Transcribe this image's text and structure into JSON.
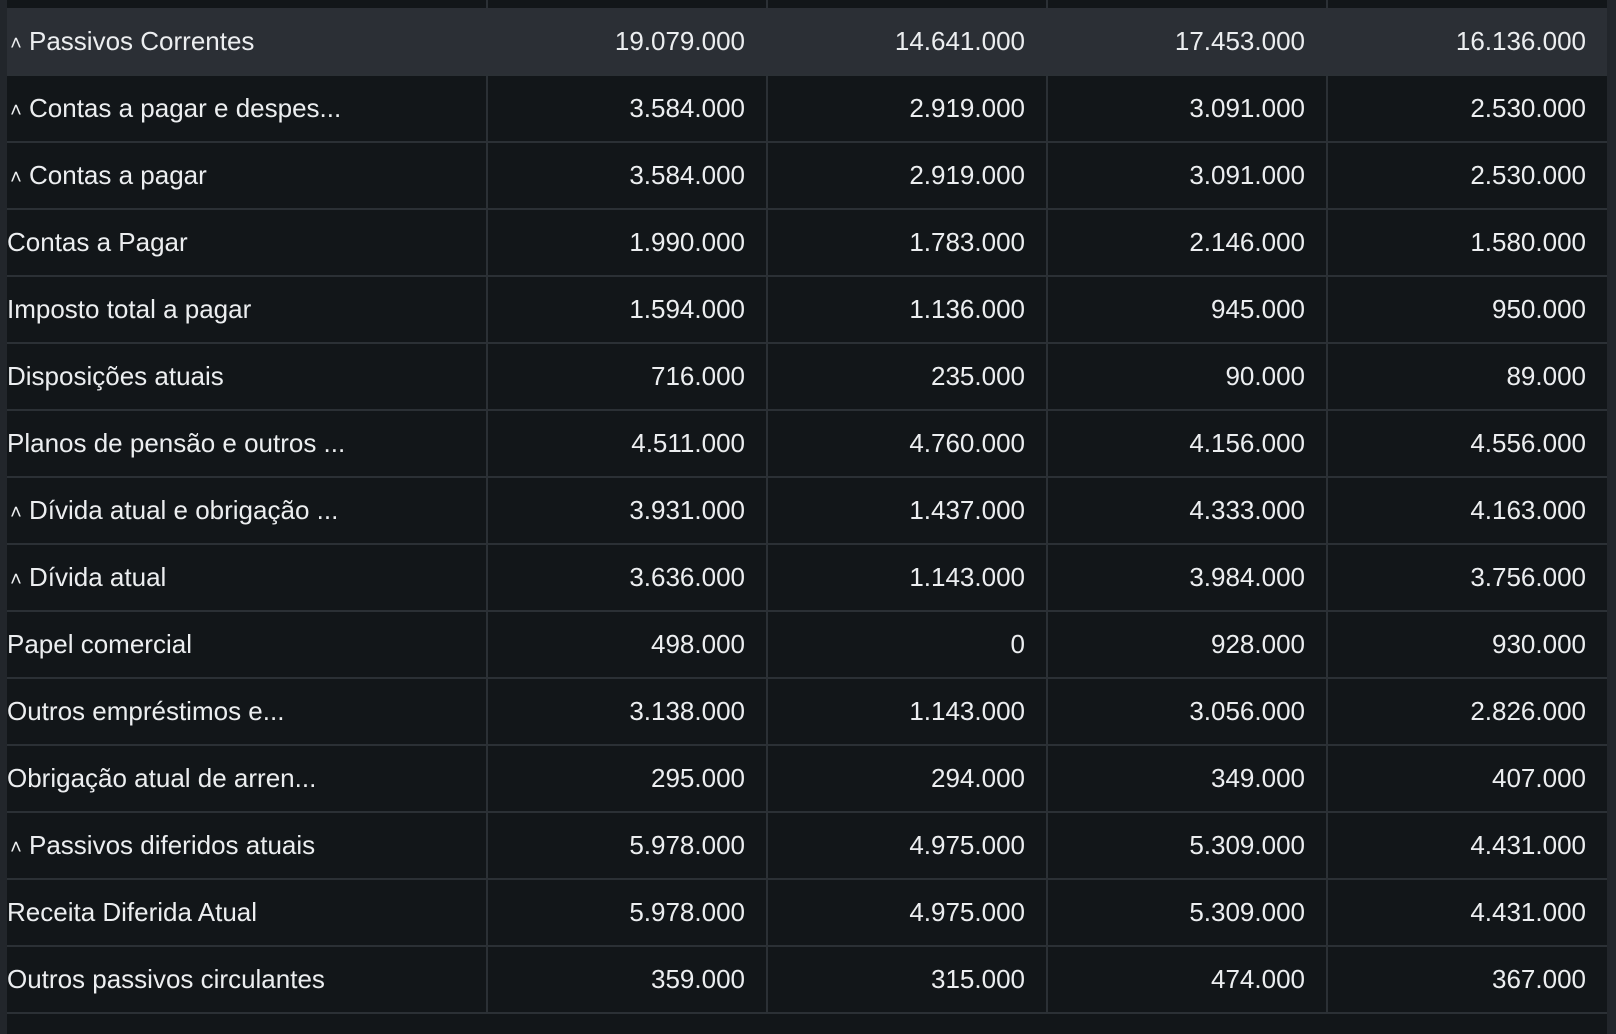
{
  "icons": {
    "collapse": "chevron-up-icon"
  },
  "table": {
    "rows": [
      {
        "label": "Passivos Correntes",
        "expandable": true,
        "level": "0c",
        "values": [
          "19.079.000",
          "14.641.000",
          "17.453.000",
          "16.136.000"
        ]
      },
      {
        "label": "Contas a pagar e despes...",
        "expandable": true,
        "level": "1c",
        "values": [
          "3.584.000",
          "2.919.000",
          "3.091.000",
          "2.530.000"
        ]
      },
      {
        "label": "Contas a pagar",
        "expandable": true,
        "level": "2c",
        "values": [
          "3.584.000",
          "2.919.000",
          "3.091.000",
          "2.530.000"
        ]
      },
      {
        "label": "Contas a Pagar",
        "expandable": false,
        "level": "3",
        "values": [
          "1.990.000",
          "1.783.000",
          "2.146.000",
          "1.580.000"
        ]
      },
      {
        "label": "Imposto total a pagar",
        "expandable": false,
        "level": "3",
        "values": [
          "1.594.000",
          "1.136.000",
          "945.000",
          "950.000"
        ]
      },
      {
        "label": "Disposições atuais",
        "expandable": false,
        "level": "r",
        "values": [
          "716.000",
          "235.000",
          "90.000",
          "89.000"
        ]
      },
      {
        "label": "Planos de pensão e outros ...",
        "expandable": false,
        "level": "r",
        "values": [
          "4.511.000",
          "4.760.000",
          "4.156.000",
          "4.556.000"
        ]
      },
      {
        "label": "Dívida atual e obrigação ...",
        "expandable": true,
        "level": "1c",
        "values": [
          "3.931.000",
          "1.437.000",
          "4.333.000",
          "4.163.000"
        ]
      },
      {
        "label": "Dívida atual",
        "expandable": true,
        "level": "2c",
        "values": [
          "3.636.000",
          "1.143.000",
          "3.984.000",
          "3.756.000"
        ]
      },
      {
        "label": "Papel comercial",
        "expandable": false,
        "level": "3",
        "values": [
          "498.000",
          "0",
          "928.000",
          "930.000"
        ]
      },
      {
        "label": "Outros empréstimos e...",
        "expandable": false,
        "level": "3",
        "values": [
          "3.138.000",
          "1.143.000",
          "3.056.000",
          "2.826.000"
        ]
      },
      {
        "label": "Obrigação atual de arren...",
        "expandable": false,
        "level": "1",
        "values": [
          "295.000",
          "294.000",
          "349.000",
          "407.000"
        ]
      },
      {
        "label": "Passivos diferidos atuais",
        "expandable": true,
        "level": "1c",
        "values": [
          "5.978.000",
          "4.975.000",
          "5.309.000",
          "4.431.000"
        ]
      },
      {
        "label": "Receita Diferida Atual",
        "expandable": false,
        "level": "1",
        "values": [
          "5.978.000",
          "4.975.000",
          "5.309.000",
          "4.431.000"
        ]
      },
      {
        "label": "Outros passivos circulantes",
        "expandable": false,
        "level": "r",
        "values": [
          "359.000",
          "315.000",
          "474.000",
          "367.000"
        ]
      }
    ]
  }
}
